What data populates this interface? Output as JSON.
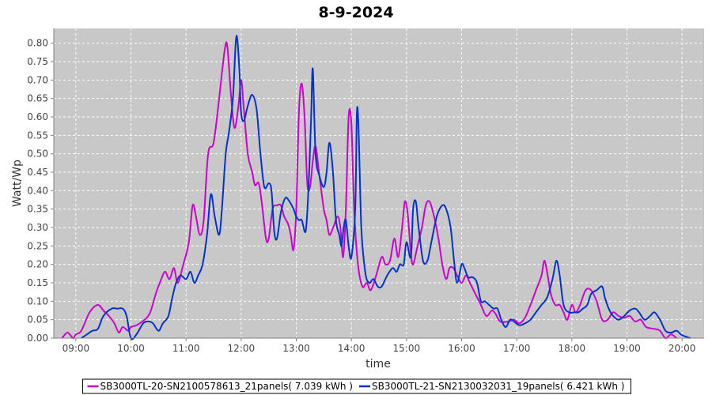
{
  "chart_data": {
    "type": "line",
    "title": "8-9-2024",
    "xlabel": "time",
    "ylabel": "Watt/Wp",
    "x_ticks": [
      "09:00",
      "10:00",
      "11:00",
      "12:00",
      "13:00",
      "14:00",
      "15:00",
      "16:00",
      "17:00",
      "18:00",
      "19:00",
      "20:00"
    ],
    "y_ticks": [
      "0.00",
      "0.05",
      "0.10",
      "0.15",
      "0.20",
      "0.25",
      "0.30",
      "0.35",
      "0.40",
      "0.45",
      "0.50",
      "0.55",
      "0.60",
      "0.65",
      "0.70",
      "0.75",
      "0.80"
    ],
    "ylim": [
      0,
      0.84
    ],
    "xlim_hours": [
      8.6,
      20.4
    ],
    "grid": true,
    "legend": "bottom",
    "series": [
      {
        "name": "SB3000TL-20-SN2100578613_21panels( 7.039 kWh )",
        "color": "#cc00cc",
        "points": [
          [
            8.75,
            0.0
          ],
          [
            8.85,
            0.015
          ],
          [
            8.95,
            0.0
          ],
          [
            9.0,
            0.01
          ],
          [
            9.1,
            0.02
          ],
          [
            9.25,
            0.07
          ],
          [
            9.4,
            0.09
          ],
          [
            9.5,
            0.075
          ],
          [
            9.6,
            0.06
          ],
          [
            9.7,
            0.04
          ],
          [
            9.78,
            0.015
          ],
          [
            9.85,
            0.03
          ],
          [
            9.95,
            0.02
          ],
          [
            10.0,
            0.03
          ],
          [
            10.1,
            0.035
          ],
          [
            10.25,
            0.05
          ],
          [
            10.35,
            0.07
          ],
          [
            10.45,
            0.12
          ],
          [
            10.55,
            0.16
          ],
          [
            10.62,
            0.18
          ],
          [
            10.7,
            0.16
          ],
          [
            10.78,
            0.19
          ],
          [
            10.85,
            0.15
          ],
          [
            10.95,
            0.2
          ],
          [
            11.05,
            0.26
          ],
          [
            11.12,
            0.36
          ],
          [
            11.18,
            0.33
          ],
          [
            11.25,
            0.28
          ],
          [
            11.32,
            0.32
          ],
          [
            11.4,
            0.5
          ],
          [
            11.5,
            0.53
          ],
          [
            11.6,
            0.65
          ],
          [
            11.7,
            0.78
          ],
          [
            11.75,
            0.79
          ],
          [
            11.82,
            0.65
          ],
          [
            11.88,
            0.57
          ],
          [
            11.95,
            0.63
          ],
          [
            12.0,
            0.7
          ],
          [
            12.05,
            0.62
          ],
          [
            12.12,
            0.5
          ],
          [
            12.2,
            0.45
          ],
          [
            12.25,
            0.415
          ],
          [
            12.32,
            0.42
          ],
          [
            12.38,
            0.36
          ],
          [
            12.45,
            0.27
          ],
          [
            12.5,
            0.27
          ],
          [
            12.57,
            0.35
          ],
          [
            12.65,
            0.36
          ],
          [
            12.72,
            0.36
          ],
          [
            12.78,
            0.33
          ],
          [
            12.85,
            0.31
          ],
          [
            12.9,
            0.28
          ],
          [
            12.95,
            0.24
          ],
          [
            13.0,
            0.35
          ],
          [
            13.05,
            0.62
          ],
          [
            13.1,
            0.69
          ],
          [
            13.15,
            0.6
          ],
          [
            13.2,
            0.42
          ],
          [
            13.25,
            0.41
          ],
          [
            13.3,
            0.48
          ],
          [
            13.35,
            0.52
          ],
          [
            13.42,
            0.44
          ],
          [
            13.5,
            0.35
          ],
          [
            13.55,
            0.32
          ],
          [
            13.6,
            0.28
          ],
          [
            13.67,
            0.3
          ],
          [
            13.75,
            0.33
          ],
          [
            13.8,
            0.3
          ],
          [
            13.85,
            0.22
          ],
          [
            13.9,
            0.35
          ],
          [
            13.95,
            0.6
          ],
          [
            14.0,
            0.58
          ],
          [
            14.05,
            0.35
          ],
          [
            14.12,
            0.2
          ],
          [
            14.2,
            0.14
          ],
          [
            14.28,
            0.15
          ],
          [
            14.35,
            0.13
          ],
          [
            14.45,
            0.17
          ],
          [
            14.55,
            0.22
          ],
          [
            14.62,
            0.2
          ],
          [
            14.7,
            0.21
          ],
          [
            14.78,
            0.27
          ],
          [
            14.85,
            0.22
          ],
          [
            14.92,
            0.3
          ],
          [
            14.97,
            0.37
          ],
          [
            15.02,
            0.34
          ],
          [
            15.08,
            0.23
          ],
          [
            15.12,
            0.2
          ],
          [
            15.2,
            0.25
          ],
          [
            15.28,
            0.3
          ],
          [
            15.35,
            0.36
          ],
          [
            15.42,
            0.37
          ],
          [
            15.5,
            0.33
          ],
          [
            15.58,
            0.27
          ],
          [
            15.65,
            0.2
          ],
          [
            15.72,
            0.16
          ],
          [
            15.78,
            0.19
          ],
          [
            15.85,
            0.19
          ],
          [
            15.92,
            0.17
          ],
          [
            16.0,
            0.15
          ],
          [
            16.08,
            0.17
          ],
          [
            16.15,
            0.15
          ],
          [
            16.25,
            0.12
          ],
          [
            16.35,
            0.09
          ],
          [
            16.45,
            0.06
          ],
          [
            16.55,
            0.075
          ],
          [
            16.62,
            0.065
          ],
          [
            16.7,
            0.045
          ],
          [
            16.85,
            0.045
          ],
          [
            16.95,
            0.05
          ],
          [
            17.05,
            0.04
          ],
          [
            17.15,
            0.055
          ],
          [
            17.25,
            0.09
          ],
          [
            17.35,
            0.13
          ],
          [
            17.45,
            0.17
          ],
          [
            17.5,
            0.21
          ],
          [
            17.55,
            0.18
          ],
          [
            17.62,
            0.12
          ],
          [
            17.7,
            0.09
          ],
          [
            17.78,
            0.09
          ],
          [
            17.85,
            0.07
          ],
          [
            17.92,
            0.05
          ],
          [
            18.0,
            0.09
          ],
          [
            18.07,
            0.07
          ],
          [
            18.15,
            0.09
          ],
          [
            18.25,
            0.13
          ],
          [
            18.35,
            0.13
          ],
          [
            18.45,
            0.1
          ],
          [
            18.55,
            0.05
          ],
          [
            18.65,
            0.05
          ],
          [
            18.75,
            0.07
          ],
          [
            18.85,
            0.06
          ],
          [
            18.95,
            0.055
          ],
          [
            19.05,
            0.06
          ],
          [
            19.15,
            0.045
          ],
          [
            19.25,
            0.05
          ],
          [
            19.35,
            0.03
          ],
          [
            19.5,
            0.025
          ],
          [
            19.6,
            0.02
          ],
          [
            19.7,
            0.0
          ],
          [
            19.8,
            0.01
          ],
          [
            19.9,
            0.0
          ]
        ]
      },
      {
        "name": "SB3000TL-21-SN2130032031_19panels( 6.421 kWh )",
        "color": "#0033cc",
        "points": [
          [
            9.1,
            0.0
          ],
          [
            9.2,
            0.01
          ],
          [
            9.3,
            0.02
          ],
          [
            9.4,
            0.025
          ],
          [
            9.5,
            0.06
          ],
          [
            9.65,
            0.08
          ],
          [
            9.75,
            0.08
          ],
          [
            9.85,
            0.08
          ],
          [
            9.92,
            0.06
          ],
          [
            10.0,
            0.0
          ],
          [
            10.1,
            0.01
          ],
          [
            10.22,
            0.04
          ],
          [
            10.32,
            0.045
          ],
          [
            10.4,
            0.04
          ],
          [
            10.5,
            0.02
          ],
          [
            10.58,
            0.04
          ],
          [
            10.68,
            0.06
          ],
          [
            10.75,
            0.11
          ],
          [
            10.82,
            0.15
          ],
          [
            10.9,
            0.17
          ],
          [
            11.0,
            0.16
          ],
          [
            11.08,
            0.18
          ],
          [
            11.15,
            0.15
          ],
          [
            11.22,
            0.17
          ],
          [
            11.3,
            0.2
          ],
          [
            11.38,
            0.28
          ],
          [
            11.45,
            0.39
          ],
          [
            11.52,
            0.33
          ],
          [
            11.6,
            0.28
          ],
          [
            11.65,
            0.35
          ],
          [
            11.72,
            0.5
          ],
          [
            11.78,
            0.56
          ],
          [
            11.85,
            0.65
          ],
          [
            11.9,
            0.8
          ],
          [
            11.93,
            0.81
          ],
          [
            11.97,
            0.72
          ],
          [
            12.0,
            0.61
          ],
          [
            12.05,
            0.59
          ],
          [
            12.12,
            0.63
          ],
          [
            12.2,
            0.66
          ],
          [
            12.28,
            0.62
          ],
          [
            12.35,
            0.5
          ],
          [
            12.42,
            0.41
          ],
          [
            12.5,
            0.42
          ],
          [
            12.55,
            0.4
          ],
          [
            12.6,
            0.29
          ],
          [
            12.65,
            0.27
          ],
          [
            12.72,
            0.34
          ],
          [
            12.8,
            0.38
          ],
          [
            12.88,
            0.37
          ],
          [
            12.95,
            0.35
          ],
          [
            13.0,
            0.33
          ],
          [
            13.05,
            0.32
          ],
          [
            13.1,
            0.32
          ],
          [
            13.17,
            0.29
          ],
          [
            13.22,
            0.4
          ],
          [
            13.27,
            0.6
          ],
          [
            13.3,
            0.73
          ],
          [
            13.35,
            0.5
          ],
          [
            13.42,
            0.44
          ],
          [
            13.5,
            0.41
          ],
          [
            13.55,
            0.45
          ],
          [
            13.6,
            0.53
          ],
          [
            13.66,
            0.46
          ],
          [
            13.72,
            0.32
          ],
          [
            13.78,
            0.28
          ],
          [
            13.82,
            0.25
          ],
          [
            13.86,
            0.3
          ],
          [
            13.9,
            0.32
          ],
          [
            13.95,
            0.25
          ],
          [
            14.0,
            0.22
          ],
          [
            14.07,
            0.35
          ],
          [
            14.1,
            0.61
          ],
          [
            14.13,
            0.57
          ],
          [
            14.18,
            0.3
          ],
          [
            14.25,
            0.18
          ],
          [
            14.32,
            0.15
          ],
          [
            14.4,
            0.16
          ],
          [
            14.48,
            0.14
          ],
          [
            14.55,
            0.14
          ],
          [
            14.65,
            0.17
          ],
          [
            14.75,
            0.19
          ],
          [
            14.82,
            0.18
          ],
          [
            14.88,
            0.2
          ],
          [
            14.95,
            0.2
          ],
          [
            15.0,
            0.26
          ],
          [
            15.08,
            0.22
          ],
          [
            15.12,
            0.35
          ],
          [
            15.17,
            0.37
          ],
          [
            15.22,
            0.3
          ],
          [
            15.3,
            0.21
          ],
          [
            15.38,
            0.21
          ],
          [
            15.45,
            0.26
          ],
          [
            15.55,
            0.33
          ],
          [
            15.65,
            0.36
          ],
          [
            15.72,
            0.35
          ],
          [
            15.8,
            0.3
          ],
          [
            15.87,
            0.2
          ],
          [
            15.92,
            0.15
          ],
          [
            16.0,
            0.2
          ],
          [
            16.05,
            0.19
          ],
          [
            16.12,
            0.165
          ],
          [
            16.2,
            0.165
          ],
          [
            16.28,
            0.15
          ],
          [
            16.35,
            0.1
          ],
          [
            16.42,
            0.1
          ],
          [
            16.5,
            0.09
          ],
          [
            16.58,
            0.08
          ],
          [
            16.65,
            0.08
          ],
          [
            16.72,
            0.05
          ],
          [
            16.8,
            0.03
          ],
          [
            16.88,
            0.05
          ],
          [
            16.95,
            0.045
          ],
          [
            17.05,
            0.035
          ],
          [
            17.15,
            0.04
          ],
          [
            17.25,
            0.05
          ],
          [
            17.35,
            0.07
          ],
          [
            17.45,
            0.09
          ],
          [
            17.55,
            0.11
          ],
          [
            17.65,
            0.16
          ],
          [
            17.72,
            0.21
          ],
          [
            17.78,
            0.17
          ],
          [
            17.85,
            0.09
          ],
          [
            17.95,
            0.07
          ],
          [
            18.05,
            0.07
          ],
          [
            18.12,
            0.07
          ],
          [
            18.2,
            0.08
          ],
          [
            18.28,
            0.09
          ],
          [
            18.35,
            0.12
          ],
          [
            18.45,
            0.13
          ],
          [
            18.55,
            0.14
          ],
          [
            18.6,
            0.11
          ],
          [
            18.67,
            0.08
          ],
          [
            18.75,
            0.06
          ],
          [
            18.85,
            0.05
          ],
          [
            18.95,
            0.06
          ],
          [
            19.05,
            0.075
          ],
          [
            19.15,
            0.08
          ],
          [
            19.22,
            0.07
          ],
          [
            19.32,
            0.05
          ],
          [
            19.42,
            0.06
          ],
          [
            19.5,
            0.07
          ],
          [
            19.6,
            0.05
          ],
          [
            19.7,
            0.02
          ],
          [
            19.8,
            0.015
          ],
          [
            19.9,
            0.02
          ],
          [
            19.98,
            0.01
          ],
          [
            20.05,
            0.005
          ],
          [
            20.15,
            0.0
          ]
        ]
      }
    ]
  }
}
